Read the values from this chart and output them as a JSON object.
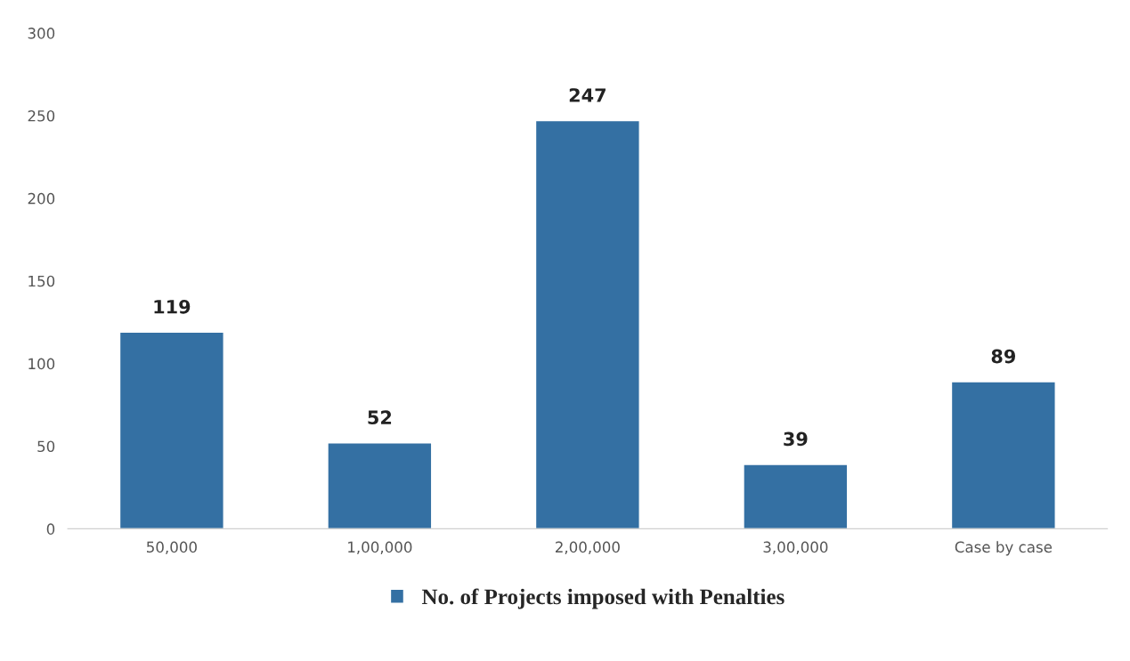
{
  "chart_data": {
    "type": "bar",
    "categories": [
      "50,000",
      "1,00,000",
      "2,00,000",
      "3,00,000",
      "Case by case"
    ],
    "series": [
      {
        "name": "No. of Projects imposed with Penalties",
        "color": "#3470a3",
        "values": [
          119,
          52,
          247,
          39,
          89
        ]
      }
    ],
    "ylim": [
      0,
      300
    ],
    "yticks": [
      0,
      50,
      100,
      150,
      200,
      250,
      300
    ],
    "data_labels": true,
    "grid": false,
    "legend": "bottom"
  }
}
